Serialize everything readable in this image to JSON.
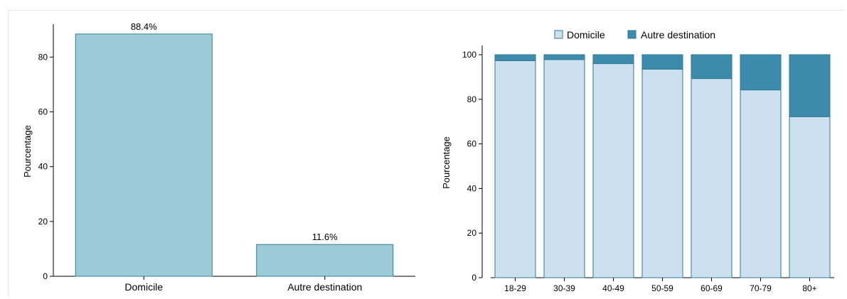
{
  "colors": {
    "single_bar_fill": "#9ccad6",
    "single_bar_stroke": "#2f8194",
    "domicile_fill": "#cce0f0",
    "autre_fill": "#3c8bac",
    "stacked_stroke": "#2f7a94",
    "axis": "#000000"
  },
  "chart_data": [
    {
      "type": "bar",
      "categories": [
        "Domicile",
        "Autre destination"
      ],
      "values": [
        88.4,
        11.6
      ],
      "data_labels": [
        "88.4%",
        "11.6%"
      ],
      "ylabel": "Pourcentage",
      "ylim": [
        0,
        92
      ],
      "yticks": [
        "0",
        "20",
        "40",
        "60",
        "80"
      ],
      "grid": false
    },
    {
      "type": "bar",
      "stacked": true,
      "categories": [
        "18-29",
        "30-39",
        "40-49",
        "50-59",
        "60-69",
        "70-79",
        "80+"
      ],
      "series": [
        {
          "name": "Domicile",
          "values": [
            97.3,
            97.8,
            96.0,
            93.5,
            89.3,
            84.2,
            72.2
          ]
        },
        {
          "name": "Autre destination",
          "values": [
            2.7,
            2.2,
            4.0,
            6.5,
            10.7,
            15.8,
            27.8
          ]
        }
      ],
      "ylabel": "Pourcentage",
      "ylim": [
        0,
        100
      ],
      "yticks": [
        "0",
        "20",
        "40",
        "60",
        "80",
        "100"
      ],
      "legend_position": "top",
      "grid": false
    }
  ]
}
